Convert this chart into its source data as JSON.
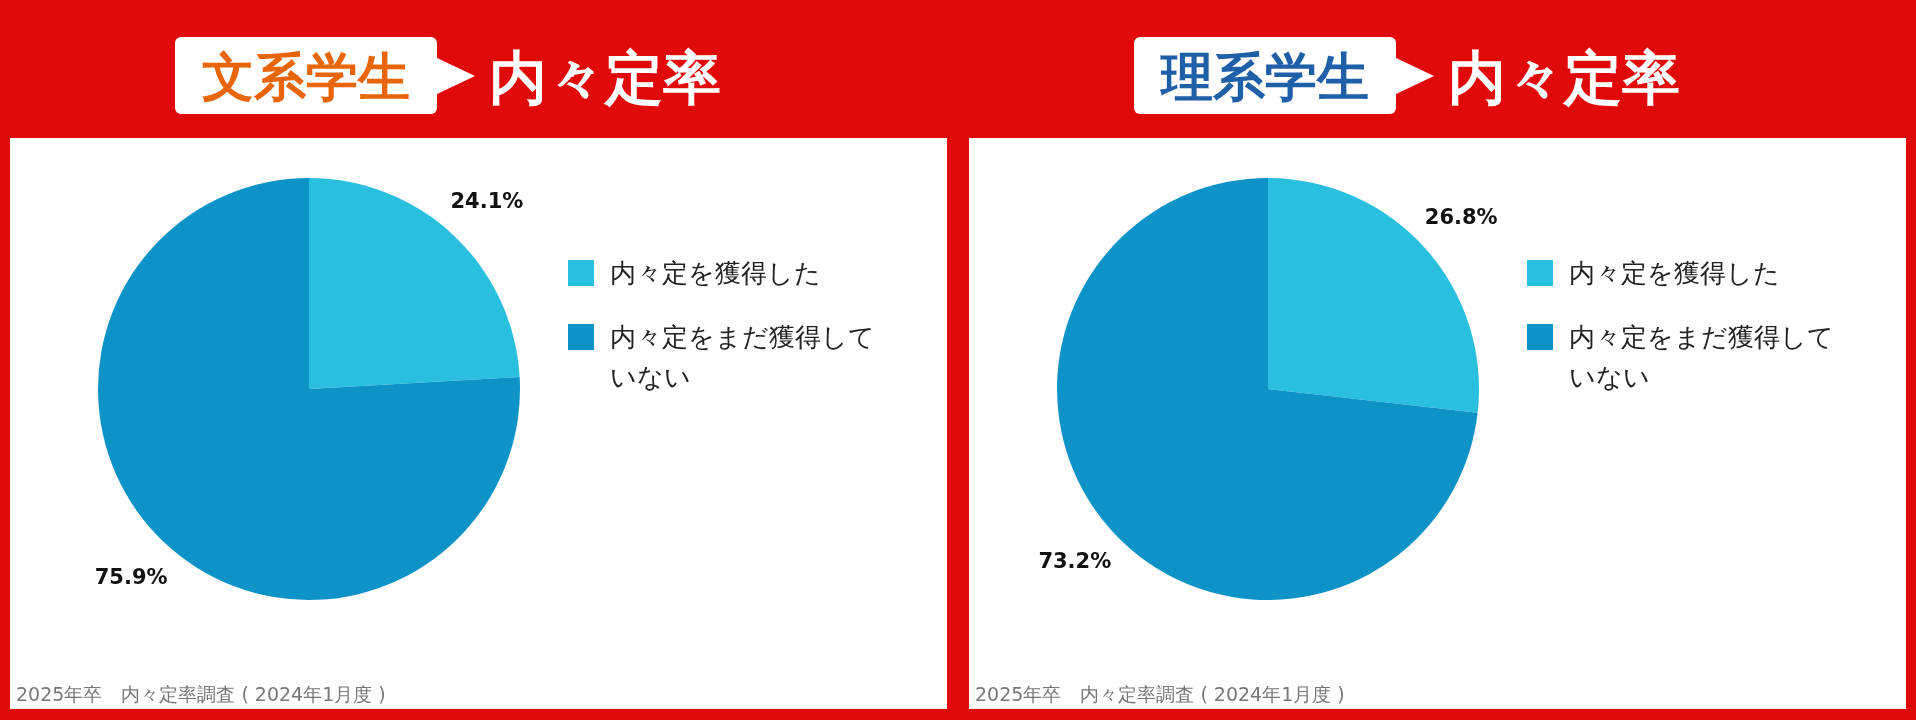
{
  "chart_data": [
    {
      "type": "pie",
      "title": "文系学生",
      "subtitle": "内々定率",
      "categories": [
        "内々定を獲得した",
        "内々定をまだ獲得していない"
      ],
      "values": [
        24.1,
        75.9
      ],
      "value_labels": [
        "24.1%",
        "75.9%"
      ],
      "colors": [
        "#29c0e0",
        "#0e93c8"
      ],
      "legend": "right",
      "annotations": [
        "2025年卒　内々定率調査 ( 2024年1月度 )"
      ]
    },
    {
      "type": "pie",
      "title": "理系学生",
      "subtitle": "内々定率",
      "categories": [
        "内々定を獲得した",
        "内々定をまだ獲得していない"
      ],
      "values": [
        26.8,
        73.2
      ],
      "value_labels": [
        "26.8%",
        "73.2%"
      ],
      "colors": [
        "#29c0e0",
        "#0e93c8"
      ],
      "legend": "right",
      "annotations": [
        "2025年卒　内々定率調査 ( 2024年1月度 )"
      ]
    }
  ]
}
